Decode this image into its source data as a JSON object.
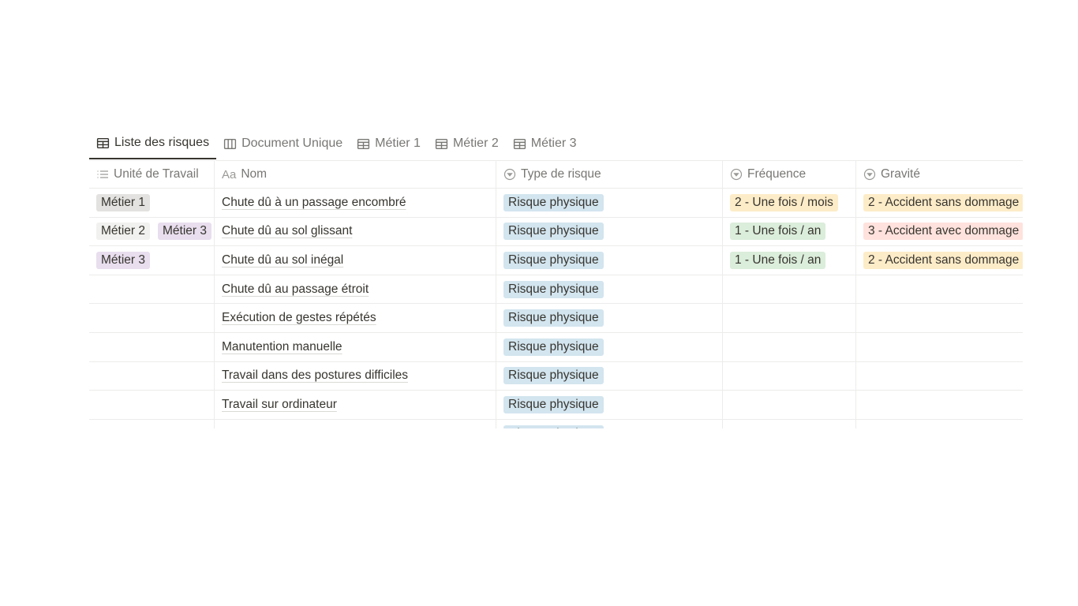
{
  "tabs": [
    {
      "label": "Liste des risques",
      "icon": "table-icon",
      "active": true
    },
    {
      "label": "Document Unique",
      "icon": "board-icon"
    },
    {
      "label": "Métier 1",
      "icon": "table-icon"
    },
    {
      "label": "Métier 2",
      "icon": "table-icon"
    },
    {
      "label": "Métier 3",
      "icon": "table-icon"
    }
  ],
  "columns": [
    {
      "label": "Unité de Travail",
      "icon": "list-icon"
    },
    {
      "label": "Nom",
      "icon": "text-icon",
      "icon_text": "Aa"
    },
    {
      "label": "Type de risque",
      "icon": "select-icon"
    },
    {
      "label": "Fréquence",
      "icon": "select-icon"
    },
    {
      "label": "Gravité",
      "icon": "select-icon"
    }
  ],
  "colors": {
    "Métier 1": "#e3e2e0",
    "Métier 2": "#f1f1ef",
    "Métier 3": "#e8deee",
    "Risque physique": "#d3e5ef",
    "2 - Une fois / mois": "#fdecc8",
    "1 - Une fois / an": "#dbeddb",
    "2 - Accident sans dommage": "#fdecc8",
    "3 - Accident avec dommage": "#ffe2dd"
  },
  "rows": [
    {
      "unites": [
        "Métier 1"
      ],
      "nom": "Chute dû à un passage encombré",
      "type": "Risque physique",
      "frequence": "2 - Une fois / mois",
      "gravite": "2 - Accident sans dommage"
    },
    {
      "unites": [
        "Métier 2",
        "Métier 3"
      ],
      "nom": "Chute dû au sol glissant",
      "type": "Risque physique",
      "frequence": "1 - Une fois / an",
      "gravite": "3 - Accident avec dommage"
    },
    {
      "unites": [
        "Métier 3"
      ],
      "nom": "Chute dû au sol inégal",
      "type": "Risque physique",
      "frequence": "1 - Une fois / an",
      "gravite": "2 - Accident sans dommage"
    },
    {
      "unites": [],
      "nom": "Chute dû au passage étroit",
      "type": "Risque physique",
      "frequence": "",
      "gravite": ""
    },
    {
      "unites": [],
      "nom": "Exécution de gestes répétés",
      "type": "Risque physique",
      "frequence": "",
      "gravite": ""
    },
    {
      "unites": [],
      "nom": "Manutention manuelle",
      "type": "Risque physique",
      "frequence": "",
      "gravite": ""
    },
    {
      "unites": [],
      "nom": "Travail dans des postures difficiles",
      "type": "Risque physique",
      "frequence": "",
      "gravite": ""
    },
    {
      "unites": [],
      "nom": "Travail sur ordinateur",
      "type": "Risque physique",
      "frequence": "",
      "gravite": ""
    },
    {
      "unites": [],
      "nom": "",
      "type": "Risque physique",
      "frequence": "",
      "gravite": ""
    }
  ]
}
